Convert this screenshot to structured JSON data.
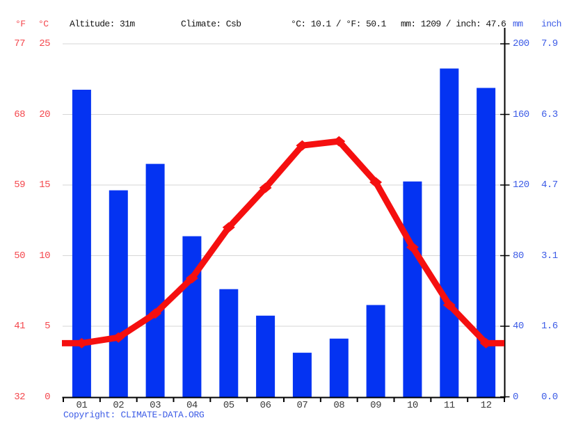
{
  "header": {
    "f_label": "°F",
    "c_label": "°C",
    "altitude": "Altitude: 31m",
    "climate": "Climate: Csb",
    "temp_summary": "°C: 10.1 / °F: 50.1",
    "precip_summary": "mm: 1209 / inch: 47.6",
    "mm_label": "mm",
    "inch_label": "inch"
  },
  "footer": {
    "copyright_label": "Copyright: ",
    "copyright_link": "CLIMATE-DATA.ORG"
  },
  "chart_data": {
    "type": "bar+line climograph",
    "categories": [
      "01",
      "02",
      "03",
      "04",
      "05",
      "06",
      "07",
      "08",
      "09",
      "10",
      "11",
      "12"
    ],
    "series": [
      {
        "name": "precipitation",
        "type": "bar",
        "unit": "mm",
        "values": [
          174,
          117,
          132,
          91,
          61,
          46,
          25,
          33,
          52,
          122,
          186,
          175
        ]
      },
      {
        "name": "temperature",
        "type": "line",
        "unit": "°C",
        "values": [
          3.8,
          4.2,
          5.9,
          8.4,
          12.0,
          14.8,
          17.8,
          18.1,
          15.2,
          10.6,
          6.5,
          3.8
        ]
      }
    ],
    "title": "",
    "xlabel": "",
    "ylabel_left": "°C / °F",
    "ylabel_right": "mm / inch",
    "axis_left": {
      "f_ticks": [
        "77",
        "68",
        "59",
        "50",
        "41",
        "32"
      ],
      "c_ticks": [
        "25",
        "20",
        "15",
        "10",
        "5",
        "0"
      ],
      "range_c": [
        0,
        25
      ]
    },
    "axis_right": {
      "mm_ticks": [
        "200",
        "160",
        "120",
        "80",
        "40",
        "0"
      ],
      "inch_ticks": [
        "7.9",
        "6.3",
        "4.7",
        "3.1",
        "1.6",
        "0.0"
      ],
      "range_mm": [
        0,
        200
      ]
    },
    "grid": true,
    "legend": false
  },
  "colors": {
    "bar_blue": "#0433f2",
    "line_red": "#f50f0f",
    "red_text": "#f4484e",
    "blue_text": "#3d5ce6",
    "month_text": "#3a3a3a",
    "header_text": "#141414",
    "gridline": "#d6d6d6",
    "axis": "#000000"
  }
}
